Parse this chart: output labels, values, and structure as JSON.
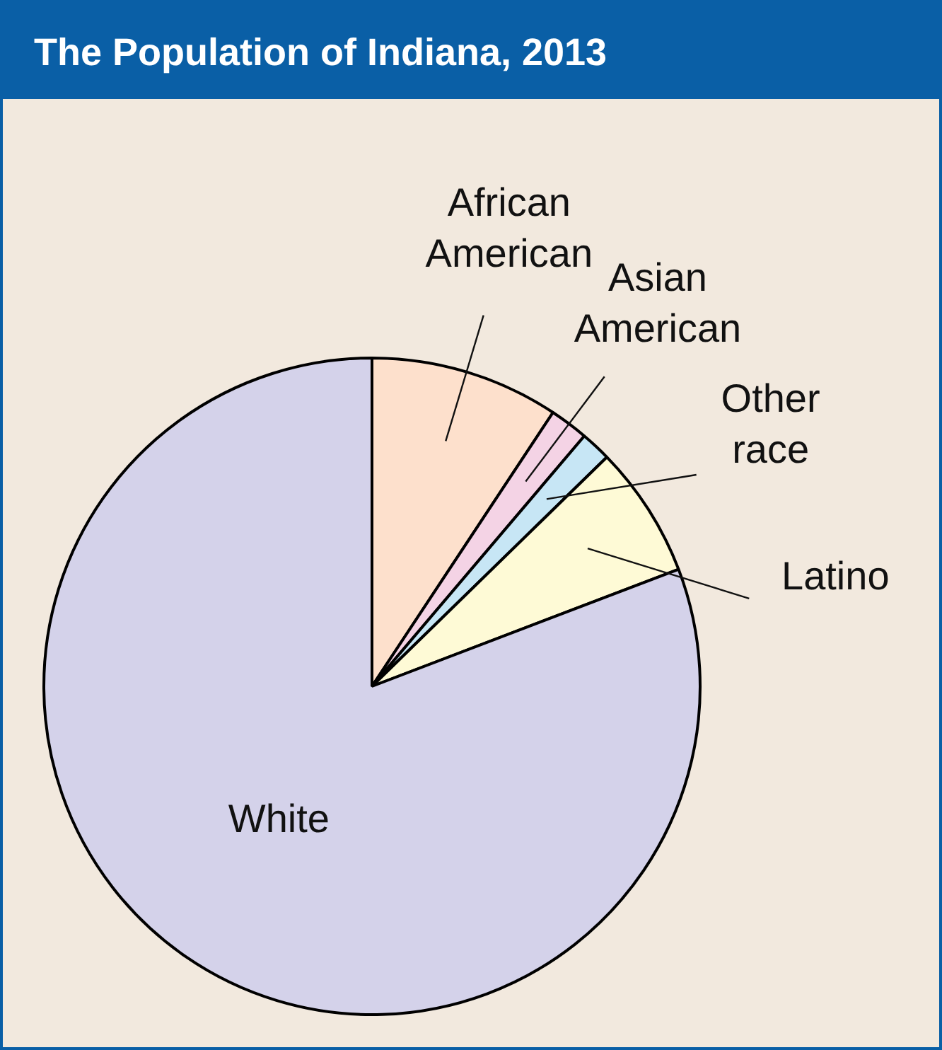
{
  "chart_data": {
    "type": "pie",
    "title": "The Population of Indiana, 2013",
    "categories": [
      "African American",
      "Asian American",
      "Other race",
      "Latino",
      "White"
    ],
    "values": [
      9.3,
      1.9,
      1.5,
      6.5,
      80.8
    ],
    "colors": [
      "#fde0cc",
      "#f4d3e5",
      "#c7e6f5",
      "#fefad6",
      "#d4d2ea"
    ],
    "legend": false
  }
}
